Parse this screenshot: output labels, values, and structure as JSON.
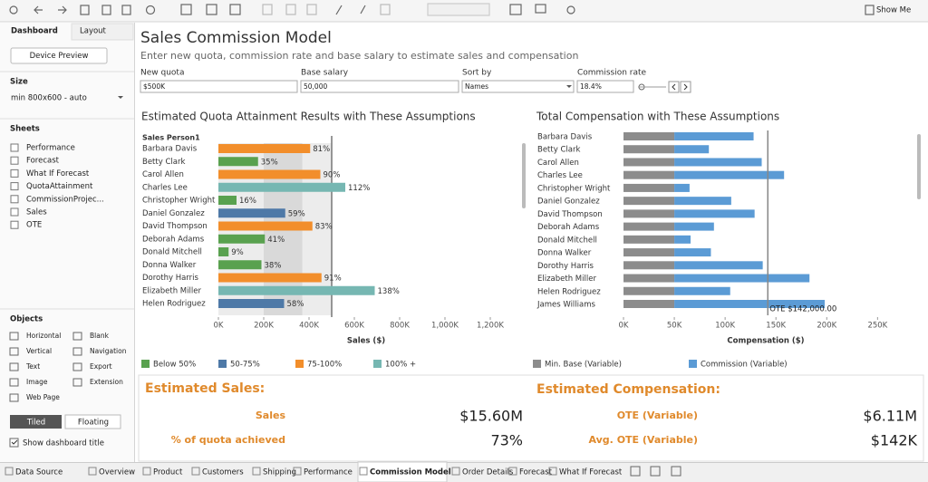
{
  "toolbar": {
    "show_me": "Show Me"
  },
  "side_panel": {
    "tabs": [
      "Dashboard",
      "Layout"
    ],
    "device_preview": "Device Preview",
    "size_heading": "Size",
    "size_value": "min 800x600 - auto",
    "sheets_heading": "Sheets",
    "sheets": [
      "Performance",
      "Forecast",
      "What If Forecast",
      "QuotaAttainment",
      "CommissionProjec...",
      "Sales",
      "OTE"
    ],
    "objects_heading": "Objects",
    "objects": [
      "Horizontal",
      "Blank",
      "Vertical",
      "Navigation",
      "Text",
      "Export",
      "Image",
      "Extension",
      "Web Page"
    ],
    "layout_modes": [
      "Tiled",
      "Floating"
    ],
    "show_title": "Show dashboard title"
  },
  "dashboard": {
    "title": "Sales Commission Model",
    "subtitle": "Enter new quota, commission rate and base salary to estimate sales and compensation",
    "parameters": [
      {
        "label": "New quota",
        "value": "$500K"
      },
      {
        "label": "Base salary",
        "value": "50,000"
      },
      {
        "label": "Sort by",
        "value": "Names"
      },
      {
        "label": "Commission rate",
        "value": "18.4%"
      }
    ],
    "summary": {
      "sales_heading": "Estimated Sales:",
      "sales_rows": [
        {
          "label": "Sales",
          "value": "$15.60M"
        },
        {
          "label": "% of quota achieved",
          "value": "73%"
        }
      ],
      "comp_heading": "Estimated Compensation:",
      "comp_rows": [
        {
          "label": "OTE (Variable)",
          "value": "$6.11M"
        },
        {
          "label": "Avg. OTE (Variable)",
          "value": "$142K"
        }
      ]
    }
  },
  "chart_data": [
    {
      "type": "hbar",
      "title": "Estimated Quota Attainment Results with These Assumptions",
      "row_header": "Sales Person1",
      "x_label": "Sales ($)",
      "categories": [
        "Barbara Davis",
        "Betty Clark",
        "Carol Allen",
        "Charles Lee",
        "Christopher Wright",
        "Daniel Gonzalez",
        "David Thompson",
        "Deborah Adams",
        "Donald Mitchell",
        "Donna Walker",
        "Dorothy Harris",
        "Elizabeth Miller",
        "Helen Rodriguez"
      ],
      "values": [
        405000,
        175000,
        450000,
        560000,
        80000,
        295000,
        415000,
        205000,
        45000,
        190000,
        455000,
        690000,
        290000
      ],
      "data_labels": [
        "81%",
        "35%",
        "90%",
        "112%",
        "16%",
        "59%",
        "83%",
        "41%",
        "9%",
        "38%",
        "91%",
        "138%",
        "58%"
      ],
      "colors": [
        "#f28e2b",
        "#59a14f",
        "#f28e2b",
        "#76b7b2",
        "#59a14f",
        "#4e79a7",
        "#f28e2b",
        "#59a14f",
        "#59a14f",
        "#59a14f",
        "#f28e2b",
        "#76b7b2",
        "#4e79a7"
      ],
      "legend": [
        {
          "name": "Below 50%",
          "color": "#59a14f"
        },
        {
          "name": "50-75%",
          "color": "#4e79a7"
        },
        {
          "name": "75-100%",
          "color": "#f28e2b"
        },
        {
          "name": "100% +",
          "color": "#76b7b2"
        }
      ],
      "reference_line": 500000,
      "bands": [
        [
          0,
          500000
        ],
        [
          200000,
          370000
        ]
      ],
      "xlim": [
        0,
        1300000
      ],
      "xticks": [
        {
          "value": 0,
          "label": "0K"
        },
        {
          "value": 200000,
          "label": "200K"
        },
        {
          "value": 400000,
          "label": "400K"
        },
        {
          "value": 600000,
          "label": "600K"
        },
        {
          "value": 800000,
          "label": "800K"
        },
        {
          "value": 1000000,
          "label": "1,000K"
        },
        {
          "value": 1200000,
          "label": "1,200K"
        }
      ]
    },
    {
      "type": "stacked_hbar",
      "title": "Total Compensation with These Assumptions",
      "x_label": "Compensation ($)",
      "categories": [
        "Barbara Davis",
        "Betty Clark",
        "Carol Allen",
        "Charles Lee",
        "Christopher Wright",
        "Daniel Gonzalez",
        "David Thompson",
        "Deborah Adams",
        "Donald Mitchell",
        "Donna Walker",
        "Dorothy Harris",
        "Elizabeth Miller",
        "Helen Rodriguez",
        "James Williams"
      ],
      "series": [
        {
          "name": "Min. Base (Variable)",
          "color": "#8c8c8c",
          "values": [
            50000,
            50000,
            50000,
            50000,
            50000,
            50000,
            50000,
            50000,
            50000,
            50000,
            50000,
            50000,
            50000,
            50000
          ]
        },
        {
          "name": "Commission (Variable)",
          "color": "#5b9bd5",
          "values": [
            78000,
            34000,
            86000,
            108000,
            15000,
            56000,
            79000,
            39000,
            16000,
            36000,
            87000,
            133000,
            55000,
            148000
          ]
        }
      ],
      "reference_line": {
        "value": 142000,
        "label": "OTE $142,000.00"
      },
      "xlim": [
        0,
        280000
      ],
      "xticks": [
        {
          "value": 0,
          "label": "0K"
        },
        {
          "value": 50000,
          "label": "50K"
        },
        {
          "value": 100000,
          "label": "100K"
        },
        {
          "value": 150000,
          "label": "150K"
        },
        {
          "value": 200000,
          "label": "200K"
        },
        {
          "value": 250000,
          "label": "250K"
        }
      ]
    }
  ],
  "tabs": [
    "Data Source",
    "Overview",
    "Product",
    "Customers",
    "Shipping",
    "Performance",
    "Commission Model",
    "Order Details",
    "Forecast",
    "What If Forecast"
  ]
}
